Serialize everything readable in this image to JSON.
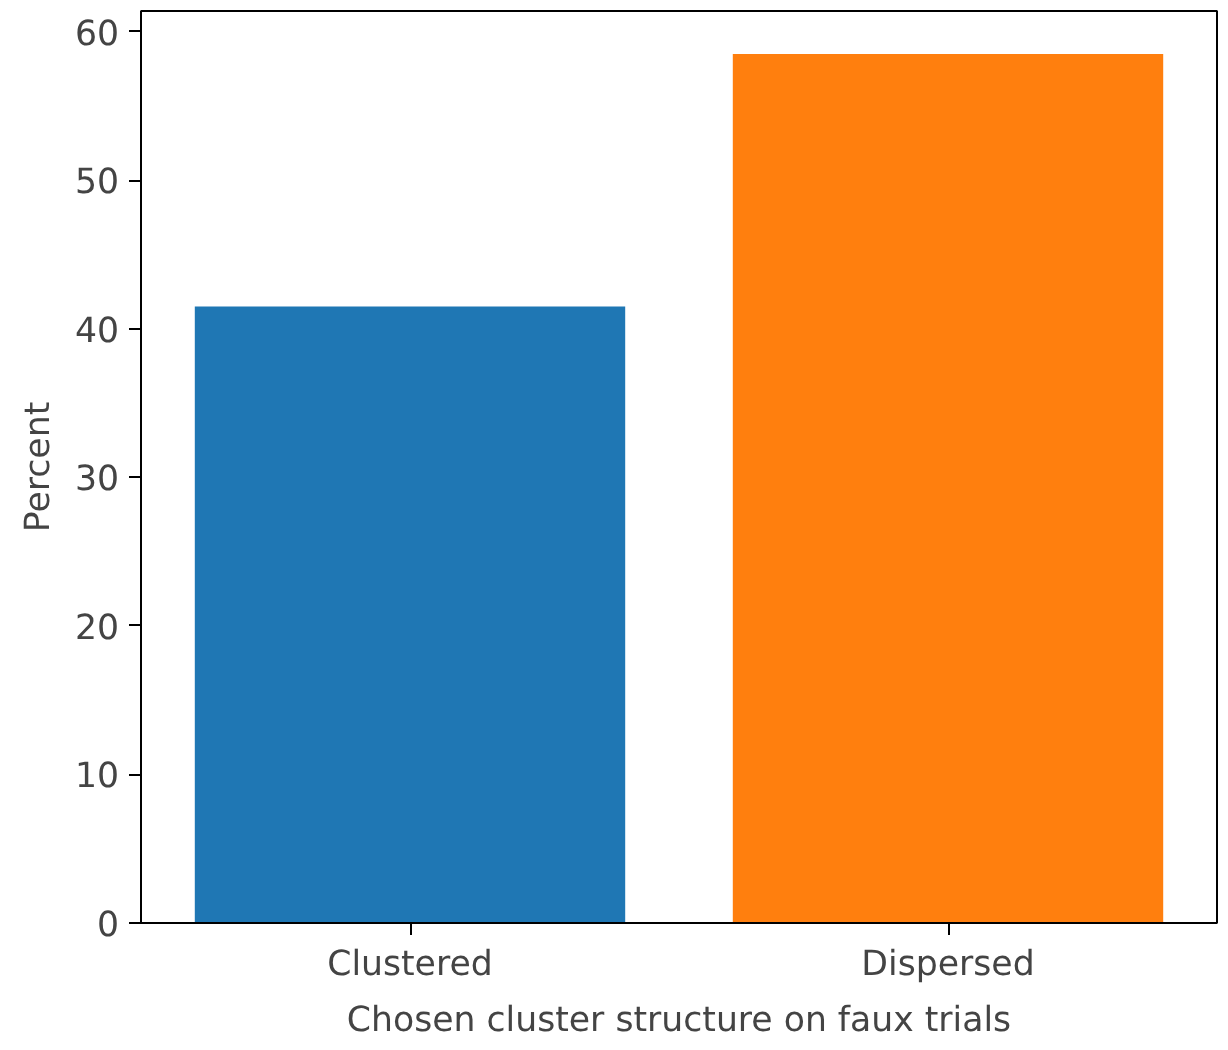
{
  "chart_data": {
    "type": "bar",
    "xlabel": "Chosen cluster structure on faux trials",
    "ylabel": "Percent",
    "categories": [
      "Clustered",
      "Dispersed"
    ],
    "values": [
      41.5,
      58.5
    ],
    "colors": [
      "#1f77b4",
      "#ff7f0e"
    ],
    "ylim": [
      0,
      61.4
    ],
    "yticks": [
      0,
      10,
      20,
      30,
      40,
      50,
      60
    ]
  }
}
